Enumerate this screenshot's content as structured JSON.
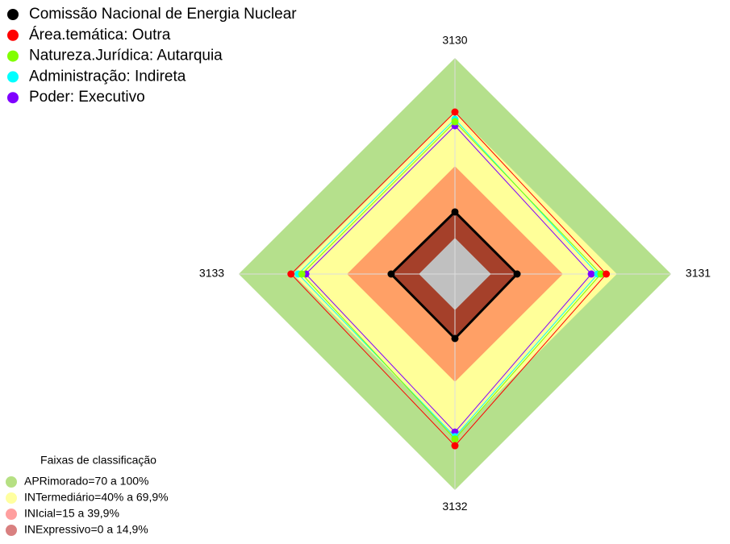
{
  "chart_data": {
    "type": "radar",
    "categories": [
      "3130",
      "3131",
      "3132",
      "3133"
    ],
    "ylim": [
      -20,
      100
    ],
    "inner_color": "#c0c0c0",
    "axis_color": "#dddddd",
    "series": [
      {
        "name": "Comissão Nacional de Energia Nuclear",
        "color": "#000000",
        "values": [
          14.5,
          14.5,
          15.8,
          15.4
        ]
      },
      {
        "name": "Área.temática: Outra",
        "color": "#ff0000",
        "values": [
          70,
          64,
          75.4,
          71
        ]
      },
      {
        "name": "Natureza.Jurídica: Autarquia",
        "color": "#80ff00",
        "values": [
          64.6,
          61,
          71.7,
          65
        ]
      },
      {
        "name": "Administração: Indireta",
        "color": "#00ffff",
        "values": [
          66,
          59.3,
          70.4,
          67
        ]
      },
      {
        "name": "Poder: Executivo",
        "color": "#8000ff",
        "values": [
          62.4,
          55.7,
          67.8,
          62.8
        ]
      }
    ],
    "bands_title": "Faixas de classificação",
    "bands": [
      {
        "name": "APRimorado=70 a 100%",
        "from": 70,
        "to": 100,
        "color": "#b5e08c",
        "legend_color": "#b6e083"
      },
      {
        "name": "INTermediário=40% a 69,9%",
        "from": 40,
        "to": 69.9,
        "color": "#ffff99",
        "legend_color": "#ffffa0"
      },
      {
        "name": "INIcial=15 a 39,9%",
        "from": 15,
        "to": 39.9,
        "color": "#ffa066",
        "legend_color": "#ff9f9f"
      },
      {
        "name": "INExpressivo=0 a 14,9%",
        "from": 0,
        "to": 14.9,
        "color": "#a5402a",
        "legend_color": "#d98080"
      }
    ]
  }
}
